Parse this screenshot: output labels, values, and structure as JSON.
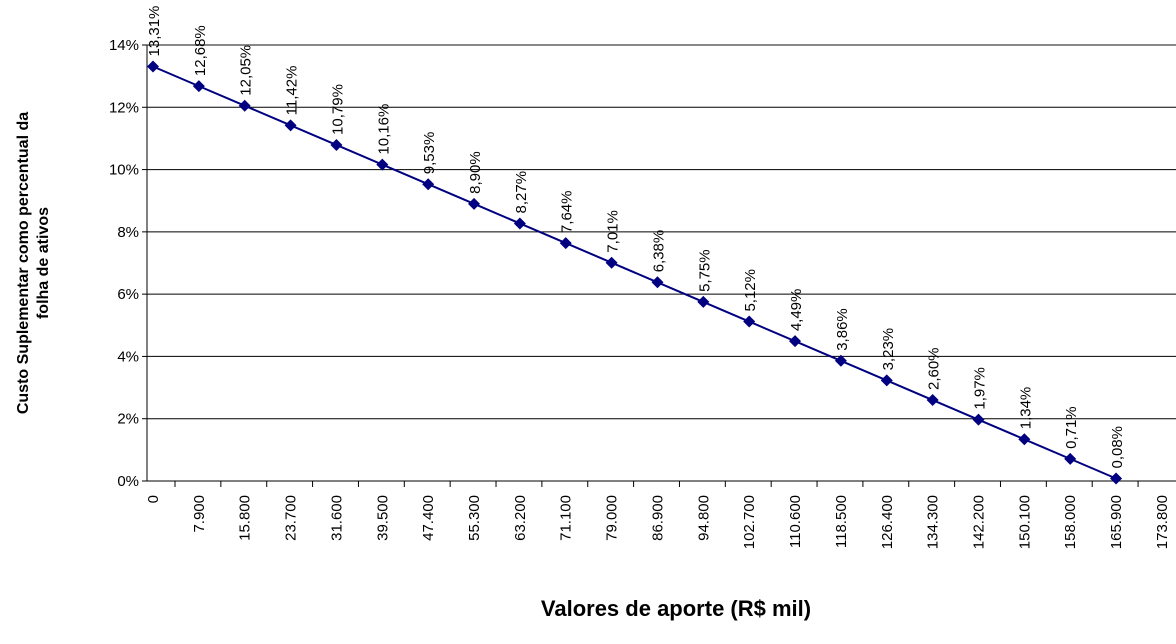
{
  "chart_data": {
    "type": "line",
    "y_label": [
      "Custo Suplementar como percentual da",
      "folha de ativos"
    ],
    "x_label": "Valores de aporte (R$ mil)",
    "categories": [
      "0",
      "7.900",
      "15.800",
      "23.700",
      "31.600",
      "39.500",
      "47.400",
      "55.300",
      "63.200",
      "71.100",
      "79.000",
      "86.900",
      "94.800",
      "102.700",
      "110.600",
      "118.500",
      "126.400",
      "134.300",
      "142.200",
      "150.100",
      "158.000",
      "165.900",
      "173.800"
    ],
    "series": [
      {
        "color": "#000080",
        "values": [
          13.31,
          12.68,
          12.05,
          11.42,
          10.79,
          10.16,
          9.53,
          8.9,
          8.27,
          7.64,
          7.01,
          6.38,
          5.75,
          5.12,
          4.49,
          3.86,
          3.23,
          2.6,
          1.97,
          1.34,
          0.71,
          0.08,
          null
        ],
        "value_labels": [
          "13,31%",
          "12,68%",
          "12,05%",
          "11,42%",
          "10,79%",
          "10,16%",
          "9,53%",
          "8,90%",
          "8,27%",
          "7,64%",
          "7,01%",
          "6,38%",
          "5,75%",
          "5,12%",
          "4,49%",
          "3,86%",
          "3,23%",
          "2,60%",
          "1,97%",
          "1,34%",
          "0,71%",
          "0,08%",
          null
        ]
      }
    ],
    "ylim": [
      0,
      14
    ],
    "yticks": [
      {
        "value": 0,
        "label": "0%"
      },
      {
        "value": 2,
        "label": "2%"
      },
      {
        "value": 4,
        "label": "4%"
      },
      {
        "value": 6,
        "label": "6%"
      },
      {
        "value": 8,
        "label": "8%"
      },
      {
        "value": 10,
        "label": "10%"
      },
      {
        "value": 12,
        "label": "12%"
      },
      {
        "value": 14,
        "label": "14%"
      }
    ],
    "grid": true
  }
}
